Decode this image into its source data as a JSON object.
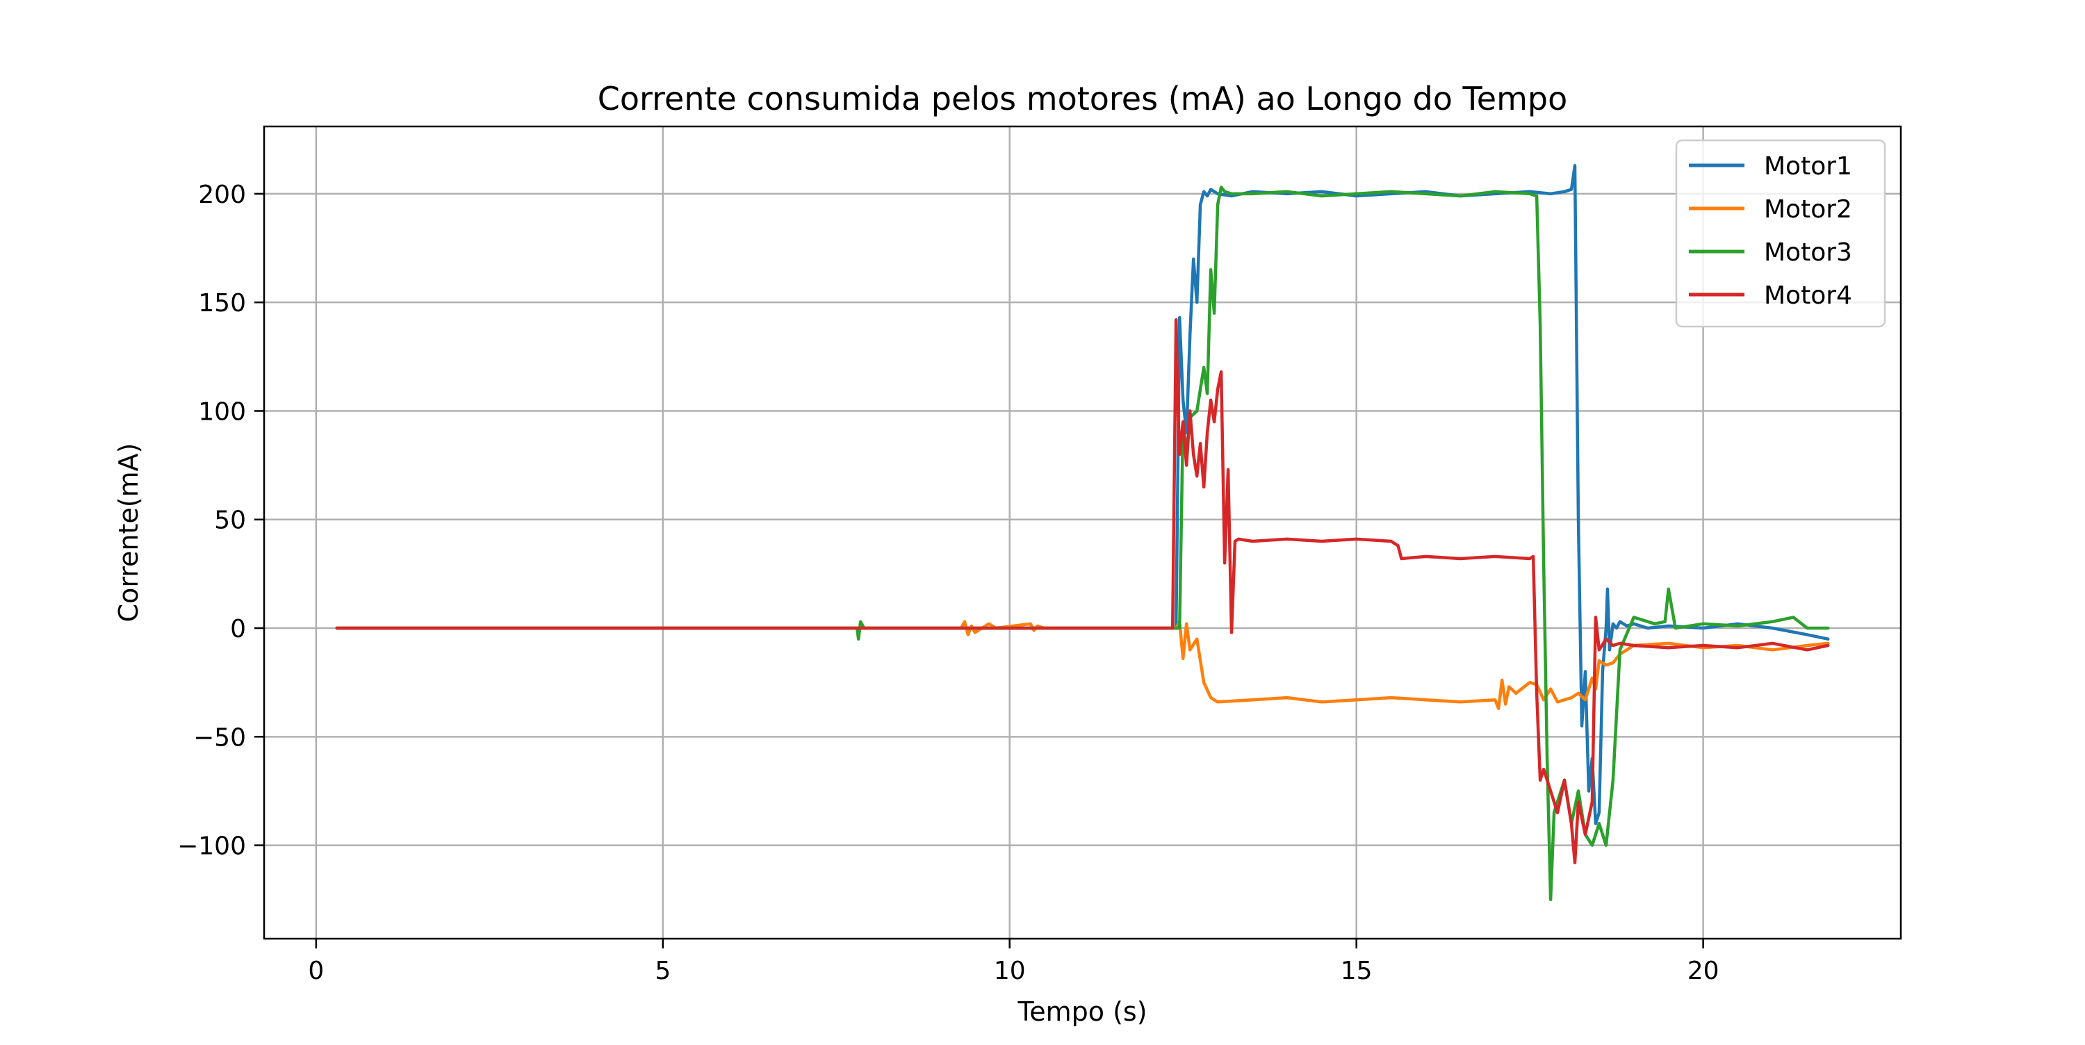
{
  "chart_data": {
    "type": "line",
    "title": "Corrente consumida pelos motores (mA) ao Longo do Tempo",
    "xlabel": "Tempo (s)",
    "ylabel": "Corrente(mA)",
    "xlim": [
      -0.75,
      22.85
    ],
    "ylim": [
      -143,
      231
    ],
    "xticks": [
      0,
      5,
      10,
      15,
      20
    ],
    "xtick_labels": [
      "0",
      "5",
      "10",
      "15",
      "20"
    ],
    "yticks": [
      -100,
      -50,
      0,
      50,
      100,
      150,
      200
    ],
    "ytick_labels": [
      "−100",
      "−50",
      "0",
      "50",
      "100",
      "150",
      "200"
    ],
    "grid": true,
    "legend_position": "top-right",
    "series": [
      {
        "name": "Motor1",
        "color": "#1f77b4",
        "x": [
          0.3,
          12.4,
          12.45,
          12.5,
          12.55,
          12.6,
          12.65,
          12.7,
          12.75,
          12.8,
          12.85,
          12.9,
          13.0,
          13.2,
          13.5,
          14.0,
          14.5,
          15.0,
          15.5,
          16.0,
          16.5,
          17.0,
          17.5,
          17.8,
          18.0,
          18.1,
          18.15,
          18.2,
          18.25,
          18.3,
          18.35,
          18.4,
          18.45,
          18.5,
          18.55,
          18.6,
          18.62,
          18.65,
          18.7,
          18.75,
          18.8,
          18.9,
          19.0,
          19.2,
          19.5,
          20.0,
          20.5,
          21.0,
          21.5,
          21.8
        ],
        "y": [
          0,
          0,
          143,
          105,
          90,
          135,
          170,
          150,
          195,
          201,
          199,
          202,
          200,
          199,
          201,
          200,
          201,
          199,
          200,
          201,
          199,
          200,
          201,
          200,
          201,
          202,
          213,
          50,
          -45,
          -20,
          -75,
          -60,
          -90,
          -85,
          -20,
          0,
          18,
          -10,
          2,
          0,
          3,
          1,
          2,
          0,
          1,
          0,
          2,
          0,
          -3,
          -5
        ]
      },
      {
        "name": "Motor2",
        "color": "#ff7f0e",
        "x": [
          0.3,
          9.3,
          9.35,
          9.4,
          9.45,
          9.5,
          9.6,
          9.7,
          9.8,
          10.3,
          10.35,
          10.4,
          10.5,
          12.4,
          12.45,
          12.5,
          12.55,
          12.6,
          12.7,
          12.8,
          12.9,
          13.0,
          13.5,
          14.0,
          14.5,
          15.0,
          15.5,
          16.0,
          16.5,
          17.0,
          17.05,
          17.1,
          17.15,
          17.2,
          17.3,
          17.5,
          17.6,
          17.7,
          17.8,
          17.9,
          18.0,
          18.1,
          18.2,
          18.3,
          18.4,
          18.45,
          18.5,
          18.6,
          18.7,
          18.8,
          19.0,
          19.5,
          20.0,
          20.5,
          21.0,
          21.5,
          21.8
        ],
        "y": [
          0,
          0,
          3,
          -3,
          1,
          -2,
          0,
          2,
          0,
          2,
          -1,
          1,
          0,
          0,
          3,
          -14,
          2,
          -10,
          -5,
          -25,
          -32,
          -34,
          -33,
          -32,
          -34,
          -33,
          -32,
          -33,
          -34,
          -33,
          -37,
          -24,
          -35,
          -27,
          -30,
          -25,
          -26,
          -33,
          -28,
          -34,
          -33,
          -32,
          -30,
          -33,
          -23,
          -28,
          -15,
          -17,
          -16,
          -12,
          -8,
          -7,
          -9,
          -8,
          -10,
          -8,
          -7
        ]
      },
      {
        "name": "Motor3",
        "color": "#2ca02c",
        "x": [
          0.3,
          7.8,
          7.82,
          7.85,
          7.9,
          12.4,
          12.45,
          12.5,
          12.55,
          12.6,
          12.7,
          12.8,
          12.85,
          12.9,
          12.95,
          13.0,
          13.05,
          13.1,
          13.2,
          13.5,
          14.0,
          14.5,
          15.0,
          15.5,
          16.0,
          16.5,
          17.0,
          17.5,
          17.6,
          17.65,
          17.7,
          17.75,
          17.8,
          17.85,
          17.9,
          18.0,
          18.1,
          18.2,
          18.3,
          18.4,
          18.5,
          18.6,
          18.7,
          18.8,
          19.0,
          19.3,
          19.45,
          19.5,
          19.6,
          20.0,
          20.5,
          21.0,
          21.3,
          21.5,
          21.8
        ],
        "y": [
          0,
          0,
          -5,
          3,
          0,
          0,
          0,
          95,
          80,
          97,
          100,
          120,
          108,
          165,
          145,
          195,
          203,
          201,
          200,
          200,
          201,
          199,
          200,
          201,
          200,
          199,
          201,
          200,
          199,
          140,
          30,
          -60,
          -125,
          -85,
          -80,
          -70,
          -90,
          -75,
          -95,
          -100,
          -90,
          -100,
          -70,
          -10,
          5,
          2,
          3,
          18,
          0,
          2,
          1,
          3,
          5,
          0,
          0
        ]
      },
      {
        "name": "Motor4",
        "color": "#d62728",
        "x": [
          0.3,
          12.35,
          12.4,
          12.42,
          12.45,
          12.5,
          12.55,
          12.6,
          12.65,
          12.7,
          12.75,
          12.8,
          12.85,
          12.9,
          12.95,
          13.0,
          13.05,
          13.1,
          13.15,
          13.2,
          13.25,
          13.3,
          13.5,
          14.0,
          14.5,
          15.0,
          15.5,
          15.6,
          15.65,
          16.0,
          16.5,
          17.0,
          17.5,
          17.55,
          17.6,
          17.65,
          17.7,
          17.8,
          17.9,
          18.0,
          18.1,
          18.15,
          18.2,
          18.3,
          18.4,
          18.45,
          18.5,
          18.6,
          18.7,
          18.8,
          19.0,
          19.5,
          20.0,
          20.5,
          21.0,
          21.5,
          21.8
        ],
        "y": [
          0,
          0,
          142,
          110,
          80,
          95,
          75,
          100,
          80,
          70,
          85,
          65,
          90,
          105,
          95,
          110,
          118,
          30,
          73,
          -2,
          40,
          41,
          40,
          41,
          40,
          41,
          40,
          38,
          32,
          33,
          32,
          33,
          32,
          33,
          -30,
          -70,
          -65,
          -75,
          -85,
          -70,
          -90,
          -108,
          -80,
          -95,
          -80,
          5,
          -10,
          -5,
          -8,
          -7,
          -8,
          -9,
          -8,
          -9,
          -7,
          -10,
          -8
        ]
      }
    ]
  }
}
